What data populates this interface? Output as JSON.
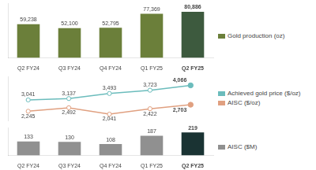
{
  "chart_data": [
    {
      "type": "bar",
      "categories": [
        "Q2 FY24",
        "Q3 FY24",
        "Q4 FY24",
        "Q1 FY25",
        "Q2 FY25"
      ],
      "series": [
        {
          "name": "Gold production (oz)",
          "colors": [
            "#6b7f3a",
            "#6b7f3a",
            "#6b7f3a",
            "#6b7f3a",
            "#3d5a3e"
          ],
          "values": [
            59238,
            52100,
            52795,
            77369,
            80886
          ],
          "value_labels": [
            "59,238",
            "52,100",
            "52,795",
            "77,369",
            "80,886"
          ]
        }
      ],
      "ylim": [
        0,
        96000
      ],
      "grid": false,
      "legend": "right",
      "data_labels": true,
      "tick_labels": "x"
    },
    {
      "type": "line",
      "categories": [
        "Q2 FY24",
        "Q3 FY24",
        "Q4 FY24",
        "Q1 FY25",
        "Q2 FY25"
      ],
      "series": [
        {
          "name": "Achieved gold price ($/oz)",
          "color": "#6bbcbc",
          "marker": "circle",
          "values": [
            3041,
            3137,
            3493,
            3723,
            4066
          ],
          "value_labels": [
            "3,041",
            "3,137",
            "3,493",
            "3,723",
            "4,066"
          ]
        },
        {
          "name": "AISC ($/oz)",
          "color": "#e0a080",
          "marker": "circle",
          "values": [
            2245,
            2492,
            2041,
            2422,
            2703
          ],
          "value_labels": [
            "2,245",
            "2,492",
            "2,041",
            "2,422",
            "2,703"
          ]
        }
      ],
      "ylim": [
        1600,
        4700
      ],
      "grid": false,
      "legend": "right",
      "data_labels": true,
      "tick_labels": false
    },
    {
      "type": "bar",
      "categories": [
        "Q2 FY24",
        "Q3 FY24",
        "Q4 FY24",
        "Q1 FY25",
        "Q2 FY25"
      ],
      "series": [
        {
          "name": "AISC ($M)",
          "colors": [
            "#909090",
            "#909090",
            "#909090",
            "#909090",
            "#1a3333"
          ],
          "values": [
            133,
            130,
            108,
            187,
            219
          ]
        }
      ],
      "ylim": [
        0,
        265
      ],
      "grid": false,
      "legend": "right",
      "data_labels": true,
      "tick_labels": "x"
    }
  ]
}
